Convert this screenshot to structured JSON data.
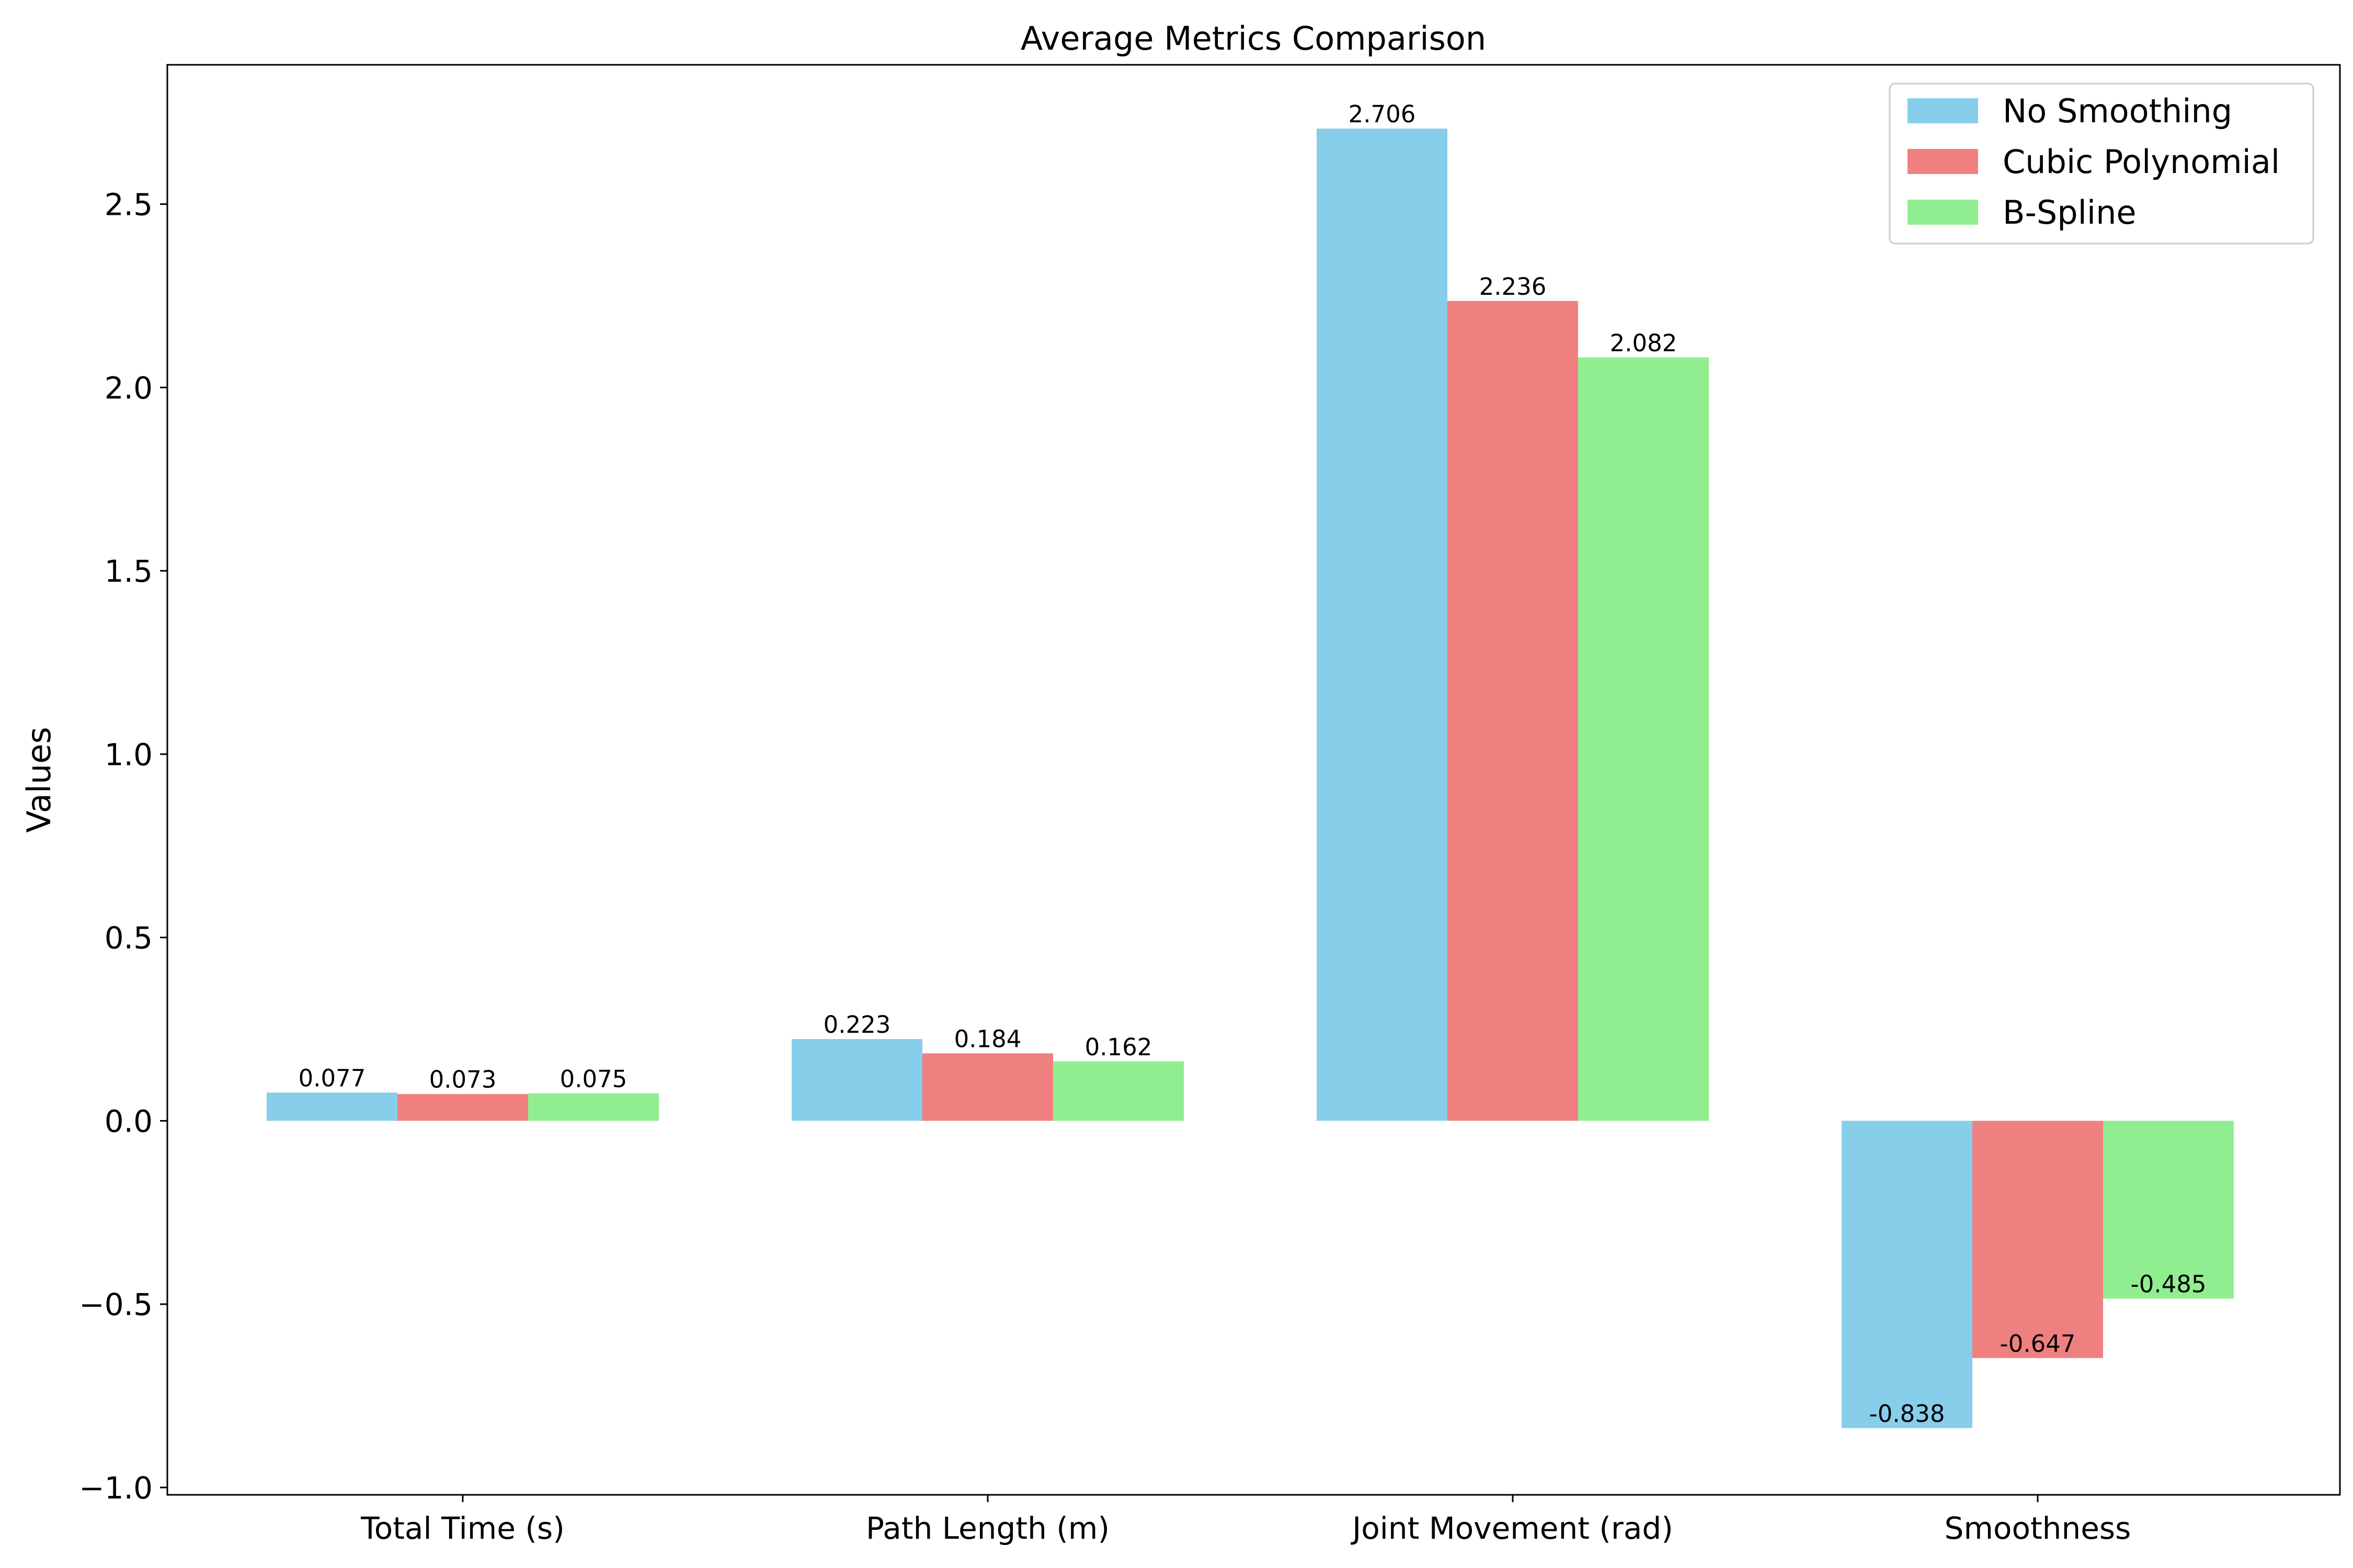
{
  "chart_data": {
    "type": "bar",
    "title": "Average Metrics Comparison",
    "xlabel": "",
    "ylabel": "Values",
    "categories": [
      "Total Time (s)",
      "Path Length (m)",
      "Joint Movement (rad)",
      "Smoothness"
    ],
    "series": [
      {
        "name": "No Smoothing",
        "color": "#87CEEB",
        "values": [
          0.077,
          0.223,
          2.706,
          -0.838
        ]
      },
      {
        "name": "Cubic Polynomial",
        "color": "#F08080",
        "values": [
          0.073,
          0.184,
          2.236,
          -0.647
        ]
      },
      {
        "name": "B-Spline",
        "color": "#90EE90",
        "values": [
          0.075,
          0.162,
          2.082,
          -0.485
        ]
      }
    ],
    "value_labels": [
      [
        "0.077",
        "0.223",
        "2.706",
        "-0.838"
      ],
      [
        "0.073",
        "0.184",
        "2.236",
        "-0.647"
      ],
      [
        "0.075",
        "0.162",
        "2.082",
        "-0.485"
      ]
    ],
    "ylim": [
      -1.02,
      2.88
    ],
    "yticks": [
      -1.0,
      -0.5,
      0.0,
      0.5,
      1.0,
      1.5,
      2.0,
      2.5
    ],
    "ytick_labels": [
      "−1.0",
      "−0.5",
      "0.0",
      "0.5",
      "1.0",
      "1.5",
      "2.0",
      "2.5"
    ],
    "grid": false,
    "legend_position": "top-right"
  }
}
